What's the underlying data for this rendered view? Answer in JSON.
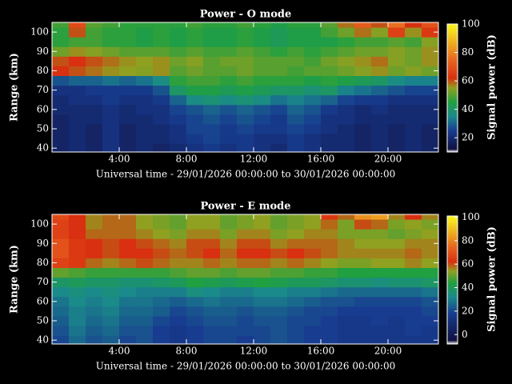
{
  "chart_data": [
    {
      "type": "heatmap",
      "title": "Power - O mode",
      "x_label": "Universal time - 29/01/2026 00:00:00 to 30/01/2026 00:00:00",
      "y_label": "Range (km)",
      "colorbar_label": "Signal power (dB)",
      "xlim": [
        0,
        23
      ],
      "xticks": [
        {
          "value": 4,
          "label": "4:00"
        },
        {
          "value": 8,
          "label": "8:00"
        },
        {
          "value": 12,
          "label": "12:00"
        },
        {
          "value": 16,
          "label": "16:00"
        },
        {
          "value": 20,
          "label": "20:00"
        }
      ],
      "ylim": [
        38,
        105
      ],
      "yticks": [
        40,
        50,
        60,
        70,
        80,
        90,
        100
      ],
      "zlim": [
        10,
        100
      ],
      "zticks": [
        20,
        40,
        60,
        80,
        100
      ],
      "colormap": [
        {
          "value": 10,
          "color": "#f0f0f0"
        },
        {
          "value": 12,
          "color": "#101040"
        },
        {
          "value": 25,
          "color": "#183c90"
        },
        {
          "value": 35,
          "color": "#1a8a8a"
        },
        {
          "value": 45,
          "color": "#20a040"
        },
        {
          "value": 55,
          "color": "#90a020"
        },
        {
          "value": 62,
          "color": "#d83010"
        },
        {
          "value": 75,
          "color": "#e86820"
        },
        {
          "value": 90,
          "color": "#f0c020"
        },
        {
          "value": 100,
          "color": "#f8f820"
        }
      ],
      "x": [
        0.5,
        1.5,
        2.5,
        3.5,
        4.5,
        5.5,
        6.5,
        7.5,
        8.5,
        9.5,
        10.5,
        11.5,
        12.5,
        13.5,
        14.5,
        15.5,
        16.5,
        17.5,
        18.5,
        19.5,
        20.5,
        21.5,
        22.5
      ],
      "y": [
        40,
        45,
        50,
        55,
        60,
        65,
        70,
        75,
        80,
        85,
        90,
        95,
        100,
        105
      ],
      "values": [
        [
          18,
          20,
          18,
          22,
          18,
          20,
          18,
          20,
          22,
          24,
          22,
          24,
          22,
          20,
          24,
          22,
          20,
          20,
          18,
          20,
          18,
          20,
          18
        ],
        [
          18,
          20,
          18,
          22,
          18,
          20,
          20,
          22,
          24,
          26,
          24,
          24,
          22,
          22,
          24,
          22,
          20,
          20,
          18,
          20,
          18,
          20,
          18
        ],
        [
          18,
          20,
          18,
          22,
          18,
          20,
          20,
          22,
          26,
          26,
          24,
          26,
          24,
          24,
          26,
          24,
          22,
          20,
          18,
          20,
          18,
          20,
          18
        ],
        [
          18,
          20,
          20,
          22,
          20,
          20,
          22,
          24,
          26,
          28,
          26,
          28,
          26,
          24,
          28,
          26,
          22,
          22,
          20,
          20,
          20,
          20,
          20
        ],
        [
          20,
          20,
          20,
          22,
          20,
          22,
          22,
          26,
          28,
          30,
          28,
          30,
          28,
          26,
          30,
          28,
          24,
          22,
          20,
          22,
          20,
          20,
          20
        ],
        [
          20,
          22,
          22,
          24,
          22,
          22,
          24,
          30,
          36,
          38,
          36,
          38,
          36,
          32,
          34,
          32,
          30,
          26,
          24,
          24,
          22,
          22,
          22
        ],
        [
          22,
          22,
          24,
          24,
          24,
          24,
          28,
          40,
          44,
          44,
          42,
          44,
          42,
          40,
          40,
          38,
          40,
          34,
          32,
          30,
          28,
          26,
          26
        ],
        [
          28,
          30,
          30,
          32,
          30,
          32,
          36,
          46,
          48,
          48,
          46,
          48,
          46,
          46,
          46,
          44,
          46,
          44,
          42,
          40,
          36,
          34,
          34
        ],
        [
          62,
          60,
          58,
          56,
          55,
          54,
          56,
          50,
          52,
          50,
          50,
          52,
          50,
          50,
          48,
          50,
          50,
          52,
          54,
          56,
          52,
          54,
          52
        ],
        [
          60,
          62,
          60,
          58,
          56,
          55,
          56,
          52,
          54,
          50,
          52,
          52,
          50,
          50,
          50,
          48,
          52,
          54,
          56,
          58,
          54,
          52,
          56
        ],
        [
          52,
          56,
          54,
          52,
          50,
          50,
          50,
          48,
          50,
          48,
          48,
          50,
          48,
          46,
          48,
          46,
          48,
          50,
          52,
          52,
          54,
          52,
          56
        ],
        [
          46,
          48,
          48,
          46,
          46,
          44,
          46,
          44,
          46,
          44,
          44,
          46,
          44,
          42,
          44,
          44,
          44,
          46,
          48,
          48,
          50,
          48,
          54
        ],
        [
          46,
          60,
          48,
          46,
          46,
          44,
          46,
          44,
          46,
          44,
          44,
          46,
          44,
          42,
          44,
          44,
          48,
          52,
          58,
          54,
          66,
          56,
          64
        ],
        [
          48,
          68,
          50,
          48,
          46,
          46,
          46,
          46,
          48,
          46,
          46,
          48,
          46,
          44,
          46,
          46,
          50,
          58,
          72,
          60,
          76,
          62,
          70
        ]
      ]
    },
    {
      "type": "heatmap",
      "title": "Power - E mode",
      "x_label": "Universal time - 29/01/2026 00:00:00 to 30/01/2026 00:00:00",
      "y_label": "Range (km)",
      "colorbar_label": "Signal power (dB)",
      "xlim": [
        0,
        23
      ],
      "xticks": [
        {
          "value": 4,
          "label": "4:00"
        },
        {
          "value": 8,
          "label": "8:00"
        },
        {
          "value": 12,
          "label": "12:00"
        },
        {
          "value": 16,
          "label": "16:00"
        },
        {
          "value": 20,
          "label": "20:00"
        }
      ],
      "ylim": [
        38,
        105
      ],
      "yticks": [
        40,
        50,
        60,
        70,
        80,
        90,
        100
      ],
      "zlim": [
        -8,
        101
      ],
      "zticks": [
        0,
        20,
        40,
        60,
        80,
        100
      ],
      "colormap": [
        {
          "value": -8,
          "color": "#f0f0f0"
        },
        {
          "value": -5,
          "color": "#101040"
        },
        {
          "value": 18,
          "color": "#183c90"
        },
        {
          "value": 32,
          "color": "#1a8a8a"
        },
        {
          "value": 44,
          "color": "#20a040"
        },
        {
          "value": 54,
          "color": "#90a020"
        },
        {
          "value": 62,
          "color": "#d83010"
        },
        {
          "value": 75,
          "color": "#e86820"
        },
        {
          "value": 90,
          "color": "#f0c020"
        },
        {
          "value": 101,
          "color": "#f8f820"
        }
      ],
      "x": [
        0.5,
        1.5,
        2.5,
        3.5,
        4.5,
        5.5,
        6.5,
        7.5,
        8.5,
        9.5,
        10.5,
        11.5,
        12.5,
        13.5,
        14.5,
        15.5,
        16.5,
        17.5,
        18.5,
        19.5,
        20.5,
        21.5,
        22.5
      ],
      "y": [
        40,
        45,
        50,
        55,
        60,
        65,
        70,
        75,
        80,
        85,
        90,
        95,
        100,
        105
      ],
      "values": [
        [
          20,
          26,
          22,
          24,
          20,
          22,
          18,
          16,
          18,
          20,
          20,
          18,
          20,
          22,
          20,
          18,
          18,
          16,
          16,
          16,
          16,
          16,
          16
        ],
        [
          22,
          28,
          24,
          26,
          22,
          22,
          18,
          16,
          18,
          20,
          20,
          20,
          20,
          22,
          20,
          18,
          18,
          16,
          16,
          16,
          16,
          18,
          16
        ],
        [
          24,
          30,
          26,
          28,
          24,
          24,
          20,
          18,
          20,
          22,
          22,
          20,
          22,
          22,
          20,
          20,
          18,
          16,
          16,
          18,
          16,
          18,
          18
        ],
        [
          26,
          30,
          28,
          30,
          26,
          26,
          24,
          20,
          22,
          24,
          24,
          22,
          24,
          24,
          22,
          20,
          20,
          18,
          18,
          18,
          18,
          18,
          20
        ],
        [
          28,
          32,
          30,
          32,
          28,
          28,
          26,
          24,
          26,
          28,
          26,
          26,
          28,
          28,
          26,
          24,
          22,
          22,
          20,
          20,
          20,
          20,
          22
        ],
        [
          32,
          34,
          32,
          34,
          32,
          30,
          30,
          30,
          34,
          32,
          30,
          30,
          32,
          32,
          30,
          30,
          28,
          26,
          26,
          26,
          26,
          26,
          28
        ],
        [
          38,
          40,
          38,
          38,
          36,
          36,
          38,
          40,
          44,
          42,
          40,
          42,
          44,
          42,
          40,
          40,
          38,
          36,
          36,
          34,
          36,
          36,
          38
        ],
        [
          50,
          48,
          46,
          46,
          46,
          46,
          46,
          48,
          50,
          50,
          48,
          50,
          50,
          48,
          48,
          46,
          46,
          44,
          44,
          44,
          44,
          44,
          44
        ],
        [
          66,
          64,
          58,
          56,
          58,
          60,
          58,
          56,
          56,
          58,
          56,
          58,
          58,
          56,
          58,
          56,
          54,
          52,
          52,
          54,
          54,
          56,
          54
        ],
        [
          70,
          64,
          62,
          60,
          62,
          62,
          60,
          58,
          60,
          62,
          58,
          62,
          62,
          60,
          62,
          60,
          58,
          56,
          56,
          56,
          56,
          58,
          56
        ],
        [
          70,
          64,
          62,
          60,
          62,
          60,
          58,
          56,
          60,
          60,
          56,
          60,
          60,
          56,
          58,
          58,
          58,
          56,
          54,
          54,
          54,
          56,
          56
        ],
        [
          66,
          62,
          58,
          58,
          58,
          56,
          54,
          52,
          56,
          56,
          52,
          56,
          56,
          52,
          54,
          56,
          56,
          52,
          52,
          52,
          50,
          52,
          54
        ],
        [
          66,
          62,
          56,
          58,
          58,
          54,
          52,
          50,
          54,
          54,
          50,
          52,
          54,
          50,
          52,
          54,
          58,
          52,
          60,
          58,
          52,
          54,
          52
        ],
        [
          68,
          62,
          56,
          58,
          58,
          54,
          52,
          50,
          54,
          54,
          50,
          52,
          54,
          50,
          52,
          54,
          64,
          58,
          82,
          84,
          56,
          62,
          56
        ]
      ]
    }
  ]
}
